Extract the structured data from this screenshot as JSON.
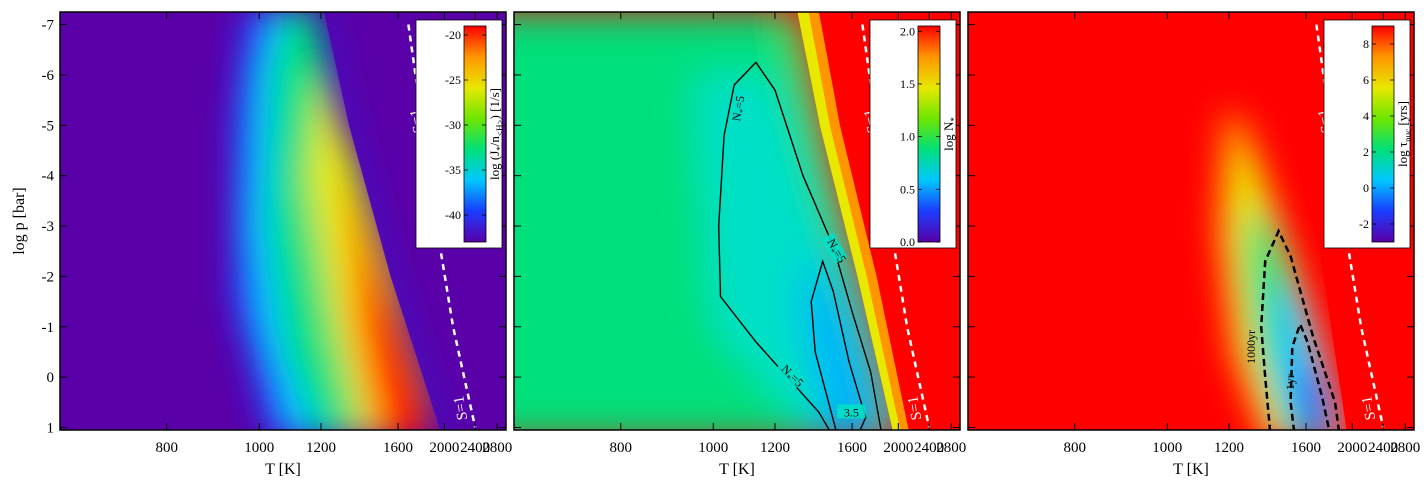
{
  "figure": {
    "ylabel": "log p [bar]",
    "yticks": [
      "-7",
      "-6",
      "-5",
      "-4",
      "-3",
      "-2",
      "-1",
      "0",
      "1"
    ],
    "xlabel": "T [K]",
    "xticks": [
      "800",
      "1000",
      "1200",
      "1600",
      "2000",
      "2400",
      "2800"
    ]
  },
  "colors": {
    "colormap": [
      "#5a00a8",
      "#1a3cff",
      "#00c8ff",
      "#00e07a",
      "#6ee600",
      "#e8e800",
      "#ff9600",
      "#ff0000"
    ],
    "contour": "#000000",
    "sline": "#ffffff"
  },
  "chart_data": [
    {
      "type": "heatmap",
      "x_axis": "1/T",
      "xlabel": "T [K]",
      "ylabel": "log p [bar]",
      "xticks": [
        800,
        1000,
        1200,
        1600,
        2000,
        2400,
        2800
      ],
      "ylim": [
        1,
        -7
      ],
      "colorbar": {
        "label": "log (J*/n<H>) [1/s]",
        "label_main": "log (J",
        "label_sub1": "*",
        "label_mid": "/n",
        "label_sub2": "<H>",
        "label_end": ") [1/s]",
        "range": [
          -43,
          -19
        ],
        "ticks": [
          "-20",
          "-25",
          "-30",
          "-35",
          "-40"
        ]
      },
      "s_line": {
        "label": "S=1",
        "points": [
          [
            1675,
            -7
          ],
          [
            1790,
            -5
          ],
          [
            1920,
            -3
          ],
          [
            2100,
            -1
          ],
          [
            2400,
            1
          ]
        ]
      },
      "contours": []
    },
    {
      "type": "heatmap",
      "x_axis": "1/T",
      "xlabel": "T [K]",
      "ylim": [
        1,
        -7
      ],
      "colorbar": {
        "label": "log N*",
        "label_main": "log N",
        "label_sub1": "*",
        "range": [
          0.0,
          2.05
        ],
        "ticks": [
          "2.0",
          "1.5",
          "1.0",
          "0.5",
          "0.0"
        ]
      },
      "s_line": {
        "label": "S=1",
        "points": [
          [
            1675,
            -7
          ],
          [
            1790,
            -5
          ],
          [
            1920,
            -3
          ],
          [
            2100,
            -1
          ],
          [
            2400,
            1
          ]
        ]
      },
      "contours": [
        {
          "label": "N*=5",
          "label_main": "N",
          "label_sub": "*",
          "label_end": "=5",
          "level": 5
        },
        {
          "label": "3.5",
          "level": 3.5
        }
      ],
      "contour_labels": [
        {
          "text_main": "N",
          "text_sub": "*",
          "text_end": "=5",
          "at": [
            1085,
            -5.4
          ],
          "angle": -80
        },
        {
          "text_main": "N",
          "text_sub": "*",
          "text_end": "=5",
          "at": [
            1480,
            -2.55
          ],
          "angle": 60
        },
        {
          "text_main": "N",
          "text_sub": "*",
          "text_end": "=5",
          "at": [
            1260,
            -0.05
          ],
          "angle": 45
        },
        {
          "text_main": "3.5",
          "at": [
            1595,
            0.7
          ],
          "angle": 0
        }
      ]
    },
    {
      "type": "heatmap",
      "x_axis": "1/T",
      "xlabel": "T [K]",
      "ylim": [
        1,
        -7
      ],
      "colorbar": {
        "label": "log τnuc [yrs]",
        "label_main": "log τ",
        "label_sub1": "nuc",
        "label_end": " [yrs]",
        "range": [
          -3,
          9
        ],
        "ticks": [
          "8",
          "6",
          "4",
          "2",
          "0",
          "-2"
        ]
      },
      "s_line": {
        "label": "S=1",
        "points": [
          [
            1675,
            -7
          ],
          [
            1790,
            -5
          ],
          [
            1920,
            -3
          ],
          [
            2100,
            -1
          ],
          [
            2400,
            1
          ]
        ]
      },
      "contours": [
        {
          "label": "1000yr",
          "level": 3
        },
        {
          "label": "1yr",
          "level": 0
        }
      ],
      "contour_labels": [
        {
          "text_main": "1000yr",
          "at": [
            1310,
            -0.6
          ],
          "angle": -90
        },
        {
          "text_main": "1yr",
          "at": [
            1520,
            0.1
          ],
          "angle": -90
        }
      ]
    }
  ]
}
